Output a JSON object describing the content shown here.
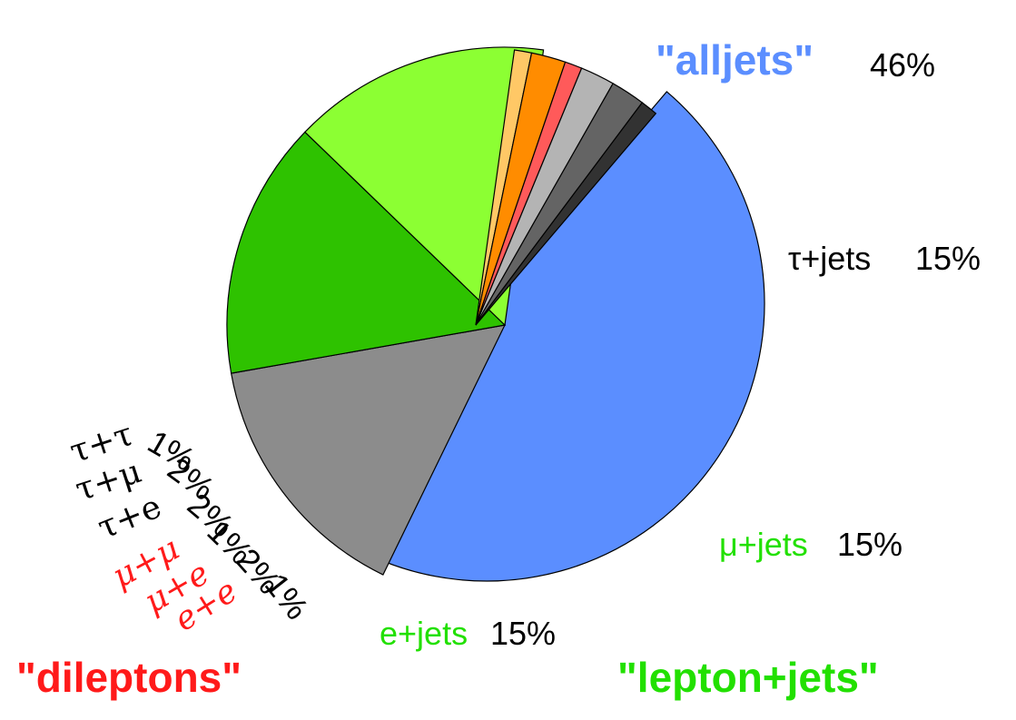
{
  "chart_data": {
    "type": "pie",
    "slices": [
      {
        "label": "\"alljets\"",
        "value": 46,
        "pct_label": "46%",
        "color": "#5b8eff",
        "label_color": "#5b8eff",
        "group": "alljets"
      },
      {
        "label": "τ+jets",
        "value": 15,
        "pct_label": "15%",
        "color": "#8c8c8c",
        "label_color": "#000000",
        "group": "lepton+jets"
      },
      {
        "label": "μ+jets",
        "value": 15,
        "pct_label": "15%",
        "color": "#2ec200",
        "label_color": "#22e000",
        "group": "lepton+jets"
      },
      {
        "label": "e+jets",
        "value": 15,
        "pct_label": "15%",
        "color": "#8cff33",
        "label_color": "#22e000",
        "group": "lepton+jets"
      },
      {
        "label": "e+e",
        "value": 1,
        "pct_label": "1%",
        "color": "#ffc866",
        "label_color": "#ff1a1a",
        "group": "dileptons"
      },
      {
        "label": "μ+e",
        "value": 2,
        "pct_label": "2%",
        "color": "#ff8c00",
        "label_color": "#ff1a1a",
        "group": "dileptons"
      },
      {
        "label": "μ+μ",
        "value": 1,
        "pct_label": "1%",
        "color": "#ff5a5a",
        "label_color": "#ff1a1a",
        "group": "dileptons"
      },
      {
        "label": "τ+e",
        "value": 2,
        "pct_label": "2%",
        "color": "#b4b4b4",
        "label_color": "#000000",
        "group": "dileptons"
      },
      {
        "label": "τ+μ",
        "value": 2,
        "pct_label": "2%",
        "color": "#646464",
        "label_color": "#000000",
        "group": "dileptons"
      },
      {
        "label": "τ+τ",
        "value": 1,
        "pct_label": "1%",
        "color": "#323232",
        "label_color": "#000000",
        "group": "dileptons"
      }
    ],
    "group_labels": {
      "dileptons": {
        "text": "\"dileptons\"",
        "color": "#ff1a1a"
      },
      "lepton_jets": {
        "text": "\"lepton+jets\"",
        "color": "#22e000"
      }
    },
    "legend": "none"
  }
}
